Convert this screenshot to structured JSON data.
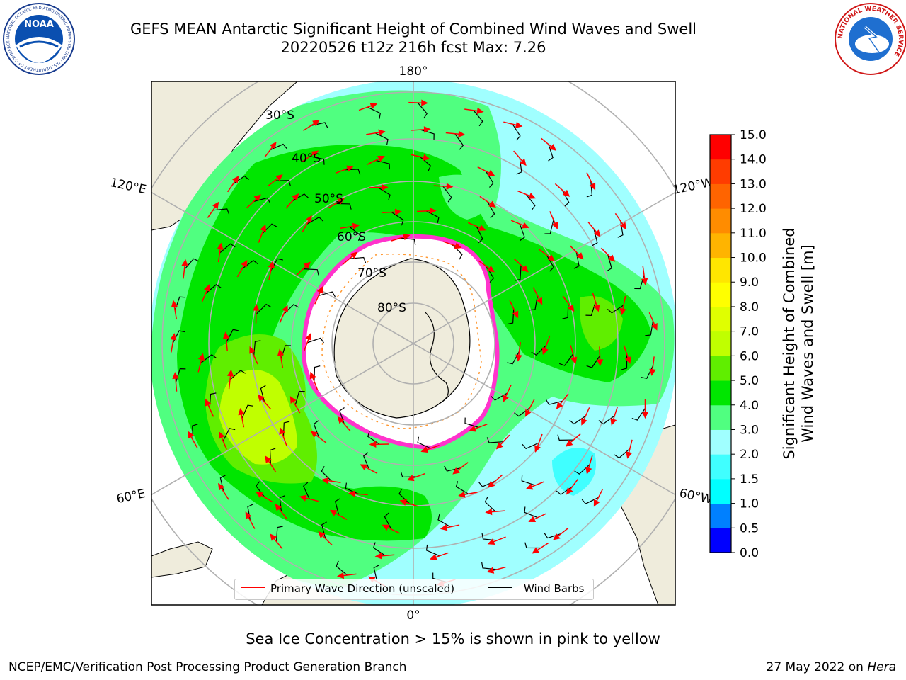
{
  "title": {
    "line1": "GEFS MEAN Antarctic Significant Height of Combined Wind Waves and Swell",
    "line2": "20220526 t12z 216h fcst   Max: 7.26"
  },
  "logos": {
    "left": {
      "name": "noaa-logo",
      "text": "NOAA",
      "ring_text": "NATIONAL OCEANIC AND ATMOSPHERIC ADMINISTRATION · U.S. DEPARTMENT OF COMMERCE"
    },
    "right": {
      "name": "nws-logo",
      "ring_text": "NATIONAL WEATHER SERVICE"
    }
  },
  "map": {
    "projection": "south polar stereographic",
    "longitude_labels": {
      "top": "180°",
      "bottom": "0°",
      "upper_left": "120°E",
      "upper_right": "120°W",
      "lower_left": "60°E",
      "lower_right": "60°W"
    },
    "latitude_labels": [
      "30°S",
      "40°S",
      "50°S",
      "60°S",
      "70°S",
      "80°S"
    ],
    "colors": {
      "land": "#efecdc",
      "ocean_fill": "#ffffff",
      "sea_ice": "#ff33cc",
      "arrow": "#ff0000",
      "barb": "#000000",
      "grid": "#b0b0b0"
    }
  },
  "legend": {
    "entries": [
      {
        "label": "Primary Wave Direction (unscaled)",
        "color": "#ff0000"
      },
      {
        "label": "Wind Barbs",
        "color": "#000000"
      }
    ]
  },
  "colorbar": {
    "label_line1": "Significant Height of Combined",
    "label_line2": "Wind Waves and Swell [m]",
    "ticks": [
      "0.0",
      "0.5",
      "1.0",
      "1.5",
      "2.0",
      "3.0",
      "4.0",
      "5.0",
      "6.0",
      "7.0",
      "8.0",
      "9.0",
      "10.0",
      "11.0",
      "12.0",
      "13.0",
      "14.0",
      "15.0"
    ],
    "colors": [
      "#0000ff",
      "#0080ff",
      "#00ffff",
      "#40ffff",
      "#a0ffff",
      "#50ff80",
      "#00e600",
      "#60ee00",
      "#c0ff00",
      "#e0ff00",
      "#ffff00",
      "#ffe600",
      "#ffb400",
      "#ff8c00",
      "#ff6400",
      "#ff3c00",
      "#ff0000"
    ]
  },
  "caption": "Sea Ice Concentration > 15% is shown in pink to yellow",
  "footer": {
    "left": "NCEP/EMC/Verification Post Processing Product Generation Branch",
    "right_date": "27 May 2022 on",
    "right_host": "Hera"
  }
}
